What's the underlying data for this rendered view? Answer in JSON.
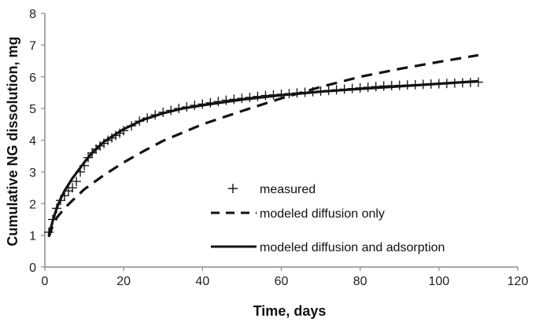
{
  "chart_data": {
    "type": "line",
    "xlabel": "Time, days",
    "ylabel": "Cumulative NG dissolution, mg",
    "xlim": [
      0,
      120
    ],
    "ylim": [
      0,
      8
    ],
    "xticks": [
      0,
      20,
      40,
      60,
      80,
      100,
      120
    ],
    "yticks": [
      0,
      1,
      2,
      3,
      4,
      5,
      6,
      7,
      8
    ],
    "grid": false,
    "legend_position": "center",
    "series": [
      {
        "name": "measured",
        "style": "marker-plus",
        "color": "#111111",
        "x": [
          1,
          2,
          3,
          4,
          5,
          6,
          7,
          8,
          9,
          10,
          11,
          12,
          13,
          14,
          15,
          16,
          17,
          18,
          19,
          20,
          22,
          24,
          26,
          28,
          30,
          32,
          34,
          36,
          38,
          40,
          42,
          44,
          46,
          48,
          50,
          52,
          54,
          56,
          58,
          60,
          62,
          64,
          66,
          68,
          70,
          72,
          74,
          76,
          78,
          80,
          82,
          84,
          86,
          88,
          90,
          92,
          94,
          96,
          98,
          100,
          102,
          104,
          106,
          108,
          110
        ],
        "y": [
          1.1,
          1.5,
          1.85,
          2.1,
          2.25,
          2.4,
          2.5,
          2.7,
          3.0,
          3.2,
          3.45,
          3.6,
          3.72,
          3.82,
          3.9,
          4.0,
          4.07,
          4.15,
          4.22,
          4.3,
          4.45,
          4.6,
          4.7,
          4.8,
          4.88,
          4.94,
          5.0,
          5.05,
          5.1,
          5.14,
          5.18,
          5.22,
          5.26,
          5.29,
          5.32,
          5.35,
          5.38,
          5.41,
          5.43,
          5.45,
          5.47,
          5.49,
          5.51,
          5.53,
          5.55,
          5.57,
          5.59,
          5.61,
          5.63,
          5.65,
          5.67,
          5.69,
          5.71,
          5.72,
          5.73,
          5.74,
          5.75,
          5.76,
          5.77,
          5.78,
          5.79,
          5.8,
          5.81,
          5.82,
          5.83
        ]
      },
      {
        "name": "modeled diffusion only",
        "style": "dashed",
        "color": "#111111",
        "x": [
          1,
          2,
          3,
          5,
          7,
          10,
          15,
          20,
          25,
          30,
          40,
          50,
          60,
          70,
          80,
          90,
          100,
          110
        ],
        "y": [
          0.95,
          1.3,
          1.55,
          1.85,
          2.1,
          2.45,
          2.9,
          3.3,
          3.65,
          3.98,
          4.5,
          4.92,
          5.32,
          5.68,
          6.0,
          6.25,
          6.47,
          6.68
        ]
      },
      {
        "name": "modeled diffusion and adsorption",
        "style": "solid",
        "color": "#111111",
        "x": [
          1,
          2,
          3,
          4,
          5,
          7,
          10,
          12,
          15,
          20,
          25,
          30,
          35,
          40,
          50,
          60,
          70,
          80,
          90,
          100,
          110
        ],
        "y": [
          1.0,
          1.45,
          1.85,
          2.15,
          2.4,
          2.8,
          3.3,
          3.6,
          3.95,
          4.35,
          4.65,
          4.85,
          5.0,
          5.1,
          5.28,
          5.42,
          5.53,
          5.62,
          5.7,
          5.78,
          5.86
        ]
      }
    ]
  }
}
